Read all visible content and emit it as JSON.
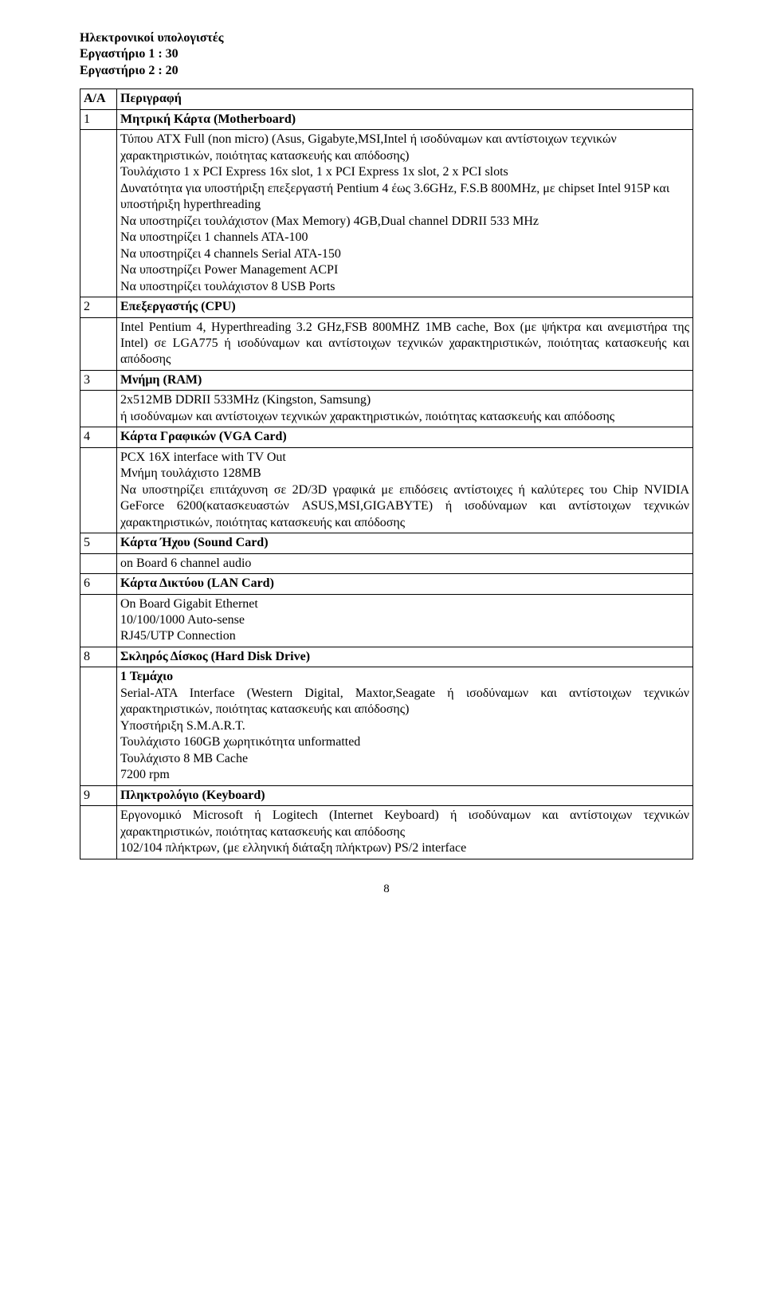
{
  "heading": {
    "title": "Ηλεκτρονικοί υπολογιστές",
    "lab1": "Εργαστήριο 1 : 30",
    "lab2": "Εργαστήριο 2 : 20"
  },
  "table": {
    "header": {
      "aa": "Α/Α",
      "desc": "Περιγραφή"
    },
    "rows": [
      {
        "aa": "1",
        "title": "Μητρική Κάρτα (Motherboard)",
        "body": [
          "Τύπου ATX Full (non micro) (Asus, Gigabyte,MSI,Intel ή ισοδύναμων και αντίστοιχων τεχνικών χαρακτηριστικών, ποιότητας κατασκευής και απόδοσης)",
          "Τουλάχιστο 1 x PCI Express 16x slot, 1 x PCI Express 1x slot, 2 x PCI slots",
          "Δυνατότητα για υποστήριξη επεξεργαστή Pentium 4 έως 3.6GHz, F.S.B 800MHz, με chipset Intel 915P και υποστήριξη hyperthreading",
          "Να υποστηρίζει τουλάχιστον (Max Memory) 4GB,Dual channel DDRII 533 MHz",
          "Να υποστηρίζει 1 channels ATA-100",
          "Να υποστηρίζει 4 channels Serial ATA-150",
          "Να υποστηρίζει Power Management ACPI",
          "Να υποστηρίζει τουλάχιστον 8 USB Ports"
        ],
        "body_justify": false
      },
      {
        "aa": "2",
        "title": "Επεξεργαστής (CPU)",
        "body": [
          "Intel Pentium 4, Hyperthreading 3.2 GHz,FSB 800MHZ 1MB cache, Box (με ψήκτρα και ανεμιστήρα της Intel) σε LGA775 ή ισοδύναμων και αντίστοιχων τεχνικών χαρακτηριστικών, ποιότητας κατασκευής και απόδοσης"
        ],
        "body_justify": true
      },
      {
        "aa": "3",
        "title": "Μνήμη (RAM)",
        "body": [
          "2x512MB DDRII 533MHz  (Kingston, Samsung)",
          "ή ισοδύναμων και αντίστοιχων τεχνικών χαρακτηριστικών, ποιότητας κατασκευής και απόδοσης"
        ],
        "body_justify": false
      },
      {
        "aa": "4",
        "title": "Κάρτα Γραφικών (VGA Card)",
        "body": [
          "PCX 16X interface with TV Out",
          "Μνήμη τουλάχιστο 128MB",
          "Να υποστηρίζει επιτάχυνση σε 2D/3D γραφικά με επιδόσεις αντίστοιχες ή καλύτερες του Chip NVIDIA GeForce 6200(κατασκευαστών ASUS,MSI,GIGABYTE) ή ισοδύναμων και αντίστοιχων τεχνικών χαρακτηριστικών, ποιότητας κατασκευής και απόδοσης"
        ],
        "body_justify": true
      },
      {
        "aa": "5",
        "title": "Κάρτα Ήχου (Sound Card)",
        "body": [
          "on Board 6 channel audio"
        ],
        "body_justify": false
      },
      {
        "aa": "6",
        "title": "Κάρτα Δικτύου (LAN Card)",
        "body": [
          "On Board Gigabit Ethernet",
          "10/100/1000 Auto-sense",
          "RJ45/UTP Connection"
        ],
        "body_justify": false
      },
      {
        "aa": "8",
        "title": "Σκληρός Δίσκος (Hard Disk Drive)",
        "body": [
          "<b>1 Τεμάχιο</b>",
          "Serial-ATA Interface (Western Digital, Maxtor,Seagate ή ισοδύναμων και αντίστοιχων τεχνικών χαρακτηριστικών, ποιότητας κατασκευής και απόδοσης)",
          "Υποστήριξη S.M.A.R.T.",
          "Τουλάχιστο 160GB χωρητικότητα unformatted",
          "Τουλάχιστο 8 MB Cache",
          "7200 rpm"
        ],
        "body_justify": true
      },
      {
        "aa": "9",
        "title": "Πληκτρολόγιο (Keyboard)",
        "body": [
          "Εργονομικό Microsoft ή Logitech (Internet Keyboard) ή ισοδύναμων και αντίστοιχων τεχνικών χαρακτηριστικών, ποιότητας κατασκευής και απόδοσης",
          "102/104 πλήκτρων, (με ελληνική διάταξη πλήκτρων) PS/2 interface"
        ],
        "body_justify": true
      }
    ]
  },
  "page_number": "8"
}
